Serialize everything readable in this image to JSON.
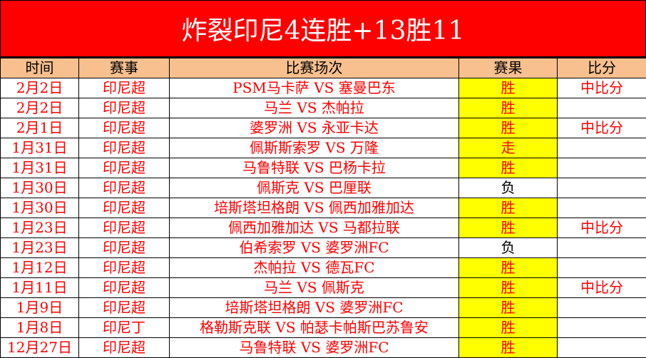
{
  "title": "炸裂印尼4连胜+13胜11",
  "colors": {
    "title_bg": "#ff0000",
    "header_bg": "#f8c08e",
    "win_bg": "#ffff00",
    "text": "#ff0000"
  },
  "headers": [
    "时间",
    "赛事",
    "比赛场次",
    "赛果",
    "比分"
  ],
  "rows": [
    {
      "date": "2月2日",
      "league": "印尼超",
      "match": "PSM马卡萨 VS 塞曼巴东",
      "result": "胜",
      "score": "中比分"
    },
    {
      "date": "2月2日",
      "league": "印尼超",
      "match": "马兰 VS 杰帕拉",
      "result": "胜",
      "score": ""
    },
    {
      "date": "2月1日",
      "league": "印尼超",
      "match": "婆罗洲 VS 永亚卡达",
      "result": "胜",
      "score": "中比分"
    },
    {
      "date": "1月31日",
      "league": "印尼超",
      "match": "佩斯斯索罗 VS 万隆",
      "result": "走",
      "score": ""
    },
    {
      "date": "1月31日",
      "league": "印尼超",
      "match": "马鲁特联 VS 巴杨卡拉",
      "result": "胜",
      "score": ""
    },
    {
      "date": "1月30日",
      "league": "印尼超",
      "match": "佩斯克 VS 巴厘联",
      "result": "负",
      "score": ""
    },
    {
      "date": "1月30日",
      "league": "印尼超",
      "match": "培斯塔坦格朗 VS 佩西加雅加达",
      "result": "胜",
      "score": ""
    },
    {
      "date": "1月23日",
      "league": "印尼超",
      "match": "佩西加雅加达 VS 马都拉联",
      "result": "胜",
      "score": "中比分"
    },
    {
      "date": "1月23日",
      "league": "印尼超",
      "match": "伯希索罗 VS 婆罗洲FC",
      "result": "负",
      "score": ""
    },
    {
      "date": "1月12日",
      "league": "印尼超",
      "match": "杰帕拉 VS 德瓦FC",
      "result": "胜",
      "score": ""
    },
    {
      "date": "1月11日",
      "league": "印尼超",
      "match": "马兰 VS 佩斯克",
      "result": "胜",
      "score": "中比分"
    },
    {
      "date": "1月9日",
      "league": "印尼超",
      "match": "培斯塔坦格朗 VS 婆罗洲FC",
      "result": "胜",
      "score": ""
    },
    {
      "date": "1月8日",
      "league": "印尼丁",
      "match": "格勒斯克联 VS 帕瑟卡帕斯巴苏鲁安",
      "result": "胜",
      "score": ""
    },
    {
      "date": "12月27日",
      "league": "印尼超",
      "match": "马鲁特联 VS 婆罗洲FC",
      "result": "胜",
      "score": ""
    }
  ]
}
